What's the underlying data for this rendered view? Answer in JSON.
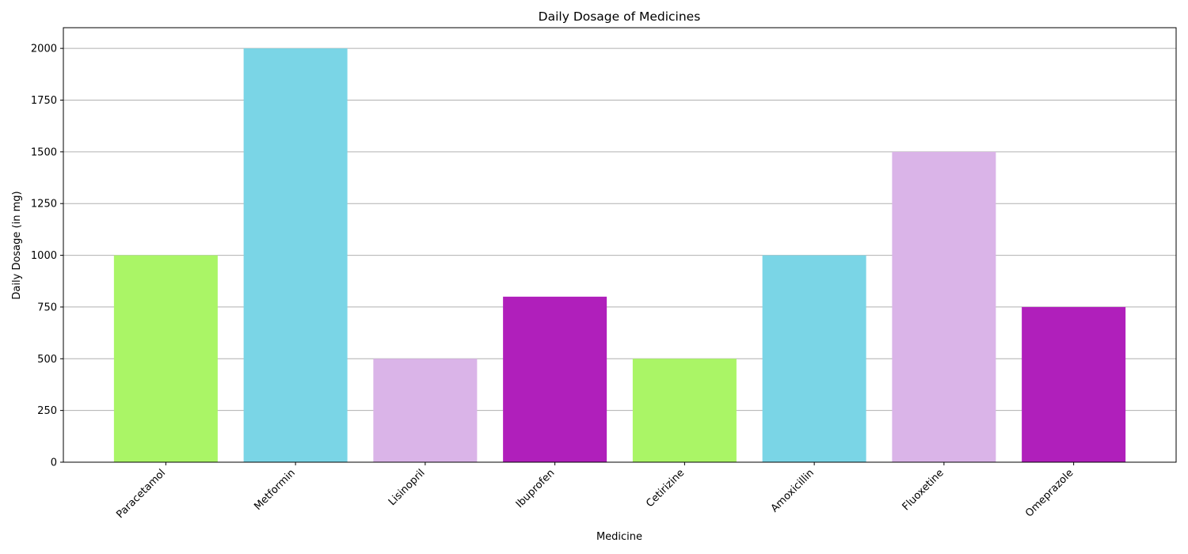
{
  "chart_data": {
    "type": "bar",
    "title": "Daily Dosage of Medicines",
    "xlabel": "Medicine",
    "ylabel": "Daily Dosage (in mg)",
    "categories": [
      "Paracetamol",
      "Metformin",
      "Lisinopril",
      "Ibuprofen",
      "Cetirizine",
      "Amoxicillin",
      "Fluoxetine",
      "Omeprazole"
    ],
    "values": [
      1000,
      2000,
      500,
      800,
      500,
      1000,
      1500,
      750
    ],
    "colors": [
      "#aaf566",
      "#7ad5e6",
      "#dab4e8",
      "#b01fbb",
      "#aaf566",
      "#7ad5e6",
      "#dab4e8",
      "#b01fbb"
    ],
    "ylim": [
      0,
      2100
    ],
    "yticks": [
      0,
      250,
      500,
      750,
      1000,
      1250,
      1500,
      1750,
      2000
    ],
    "grid": "y",
    "legend": "none"
  }
}
